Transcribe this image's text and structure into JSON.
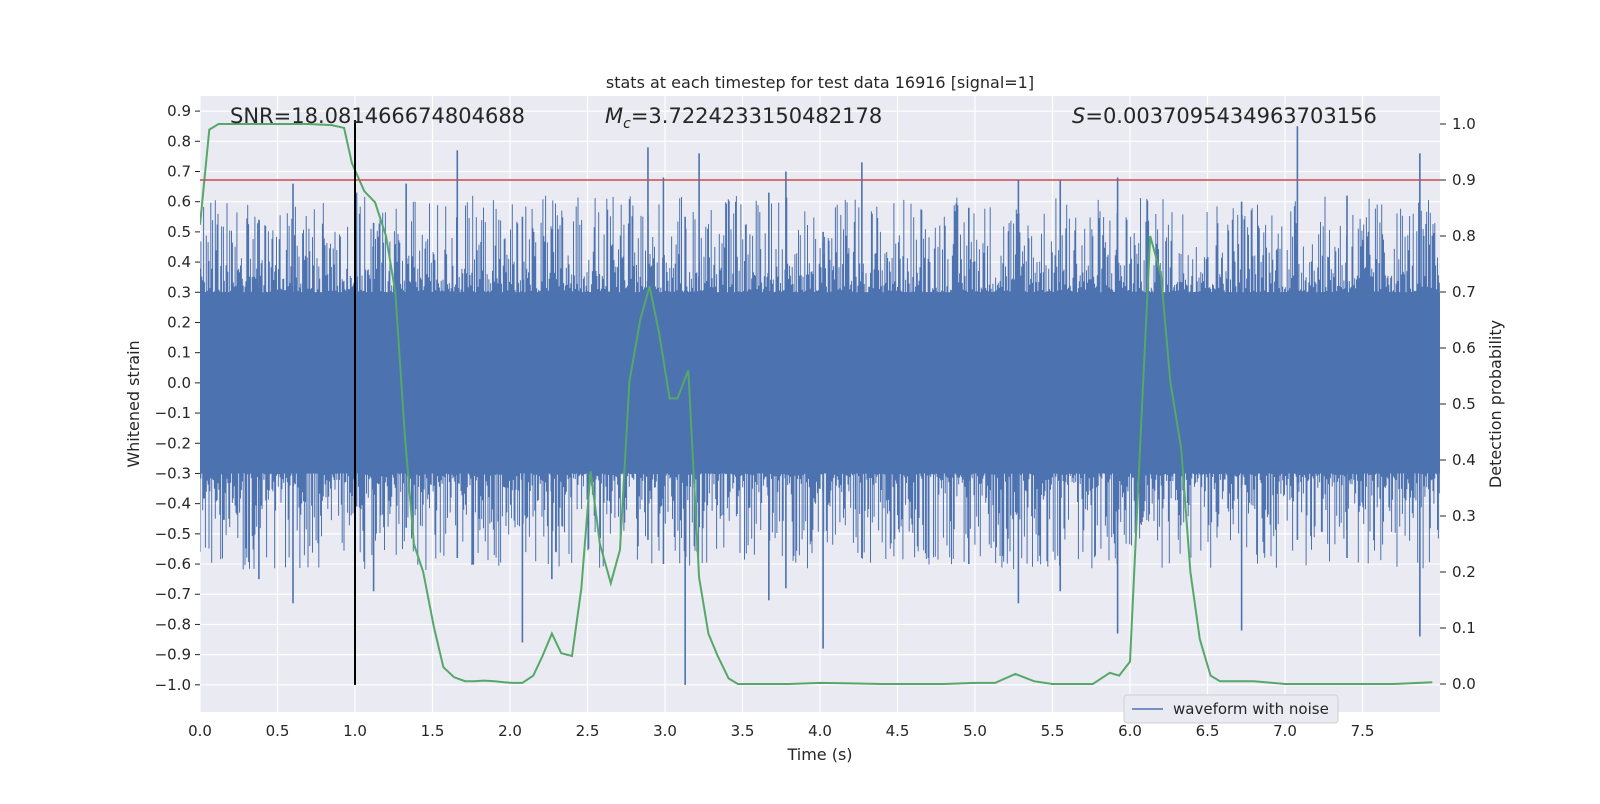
{
  "chart_data": {
    "type": "line",
    "title": "stats at each timestep for test data 16916 [signal=1]",
    "xlabel": "Time (s)",
    "ylabel": "Whitened strain",
    "y2label": "Detection probability",
    "xlim": [
      0.0,
      8.0
    ],
    "ylim": [
      -1.09,
      0.95
    ],
    "y2lim": [
      -0.05,
      1.05
    ],
    "xticks": [
      "0.0",
      "0.5",
      "1.0",
      "1.5",
      "2.0",
      "2.5",
      "3.0",
      "3.5",
      "4.0",
      "4.5",
      "5.0",
      "5.5",
      "6.0",
      "6.5",
      "7.0",
      "7.5"
    ],
    "yticks": [
      "−1.0",
      "−0.9",
      "−0.8",
      "−0.7",
      "−0.6",
      "−0.5",
      "−0.4",
      "−0.3",
      "−0.2",
      "−0.1",
      "0.0",
      "0.1",
      "0.2",
      "0.3",
      "0.4",
      "0.5",
      "0.6",
      "0.7",
      "0.8",
      "0.9"
    ],
    "y2ticks": [
      "0.0",
      "0.1",
      "0.2",
      "0.3",
      "0.4",
      "0.5",
      "0.6",
      "0.7",
      "0.8",
      "0.9",
      "1.0"
    ],
    "grid": true,
    "legend": {
      "position": "lower center",
      "entries": [
        "waveform with noise"
      ]
    },
    "annotations": {
      "snr": "SNR=18.081466674804688",
      "mc": "=3.7224233150482178",
      "mc_symbol": "M",
      "mc_sub": "c",
      "s": "=0.0037095434963703156",
      "s_symbol": "S"
    },
    "marker_line_time": 1.0,
    "threshold_probability": 0.9,
    "series": [
      {
        "name": "waveform with noise",
        "axis": "left",
        "color": "#4c72b0",
        "envelope": {
          "core_amplitude": 0.3,
          "typical_peak": 0.5,
          "spikes": [
            [
              0.38,
              0.54,
              -0.65
            ],
            [
              0.6,
              0.66,
              -0.73
            ],
            [
              1.01,
              0.63,
              -0.41
            ],
            [
              1.12,
              0.53,
              -0.69
            ],
            [
              1.33,
              0.66,
              -0.48
            ],
            [
              1.66,
              0.77,
              -0.58
            ],
            [
              2.08,
              0.55,
              -0.86
            ],
            [
              2.27,
              0.48,
              -0.65
            ],
            [
              2.89,
              0.78,
              -0.52
            ],
            [
              2.99,
              0.68,
              -0.6
            ],
            [
              3.13,
              0.55,
              -1.0
            ],
            [
              3.22,
              0.76,
              -0.44
            ],
            [
              3.67,
              0.63,
              -0.72
            ],
            [
              3.78,
              0.7,
              -0.68
            ],
            [
              4.02,
              0.5,
              -0.88
            ],
            [
              4.27,
              0.73,
              -0.58
            ],
            [
              4.96,
              0.58,
              -0.6
            ],
            [
              5.28,
              0.67,
              -0.73
            ],
            [
              5.55,
              0.67,
              -0.69
            ],
            [
              5.92,
              0.68,
              -0.83
            ],
            [
              6.72,
              0.6,
              -0.82
            ],
            [
              7.08,
              0.85,
              -0.52
            ],
            [
              7.4,
              0.62,
              -0.58
            ],
            [
              7.87,
              0.76,
              -0.84
            ]
          ]
        }
      },
      {
        "name": "detection probability",
        "axis": "right",
        "color": "#55a868",
        "x": [
          0.0,
          0.06,
          0.12,
          0.18,
          0.3,
          0.5,
          0.7,
          0.85,
          0.93,
          0.98,
          1.06,
          1.13,
          1.2,
          1.26,
          1.32,
          1.38,
          1.44,
          1.51,
          1.57,
          1.64,
          1.71,
          1.77,
          1.83,
          1.9,
          1.96,
          2.02,
          2.08,
          2.15,
          2.21,
          2.27,
          2.33,
          2.4,
          2.46,
          2.52,
          2.58,
          2.65,
          2.71,
          2.77,
          2.84,
          2.9,
          2.96,
          3.03,
          3.08,
          3.15,
          3.22,
          3.28,
          3.34,
          3.41,
          3.47,
          3.53,
          3.6,
          3.8,
          4.0,
          4.2,
          4.4,
          4.6,
          4.8,
          5.0,
          5.13,
          5.26,
          5.38,
          5.5,
          5.63,
          5.76,
          5.87,
          5.93,
          6.0,
          6.07,
          6.13,
          6.2,
          6.26,
          6.33,
          6.39,
          6.45,
          6.52,
          6.58,
          6.64,
          6.8,
          7.0,
          7.2,
          7.5,
          7.7,
          7.95
        ],
        "y": [
          0.82,
          0.99,
          1.0,
          1.0,
          1.0,
          1.0,
          1.0,
          0.998,
          0.993,
          0.93,
          0.88,
          0.86,
          0.8,
          0.7,
          0.45,
          0.25,
          0.2,
          0.1,
          0.03,
          0.012,
          0.005,
          0.005,
          0.006,
          0.005,
          0.003,
          0.002,
          0.002,
          0.015,
          0.05,
          0.09,
          0.055,
          0.05,
          0.17,
          0.38,
          0.25,
          0.18,
          0.24,
          0.54,
          0.65,
          0.71,
          0.63,
          0.51,
          0.51,
          0.56,
          0.19,
          0.09,
          0.05,
          0.01,
          0.0,
          0.0,
          0.0,
          0.0,
          0.002,
          0.001,
          0.0,
          0.0,
          0.0,
          0.002,
          0.002,
          0.018,
          0.005,
          0.0,
          0.0,
          0.0,
          0.02,
          0.015,
          0.04,
          0.45,
          0.8,
          0.73,
          0.54,
          0.42,
          0.2,
          0.08,
          0.015,
          0.005,
          0.005,
          0.005,
          0.0,
          0.0,
          0.0,
          0.0,
          0.003
        ]
      }
    ]
  }
}
